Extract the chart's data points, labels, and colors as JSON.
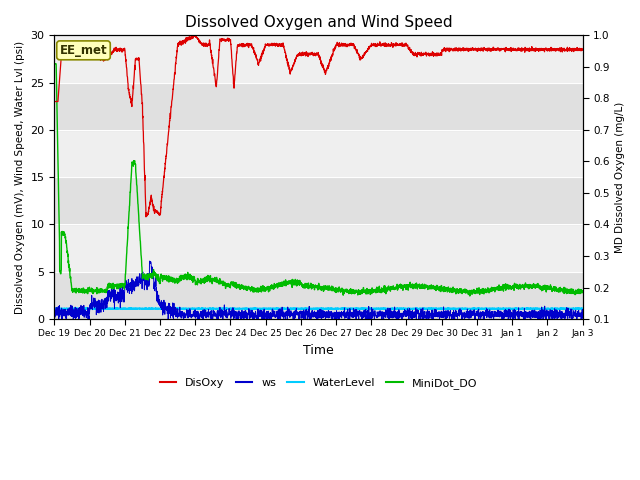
{
  "title": "Dissolved Oxygen and Wind Speed",
  "xlabel": "Time",
  "ylabel_left": "Dissolved Oxygen (mV), Wind Speed, Water Lvl (psi)",
  "ylabel_right": "MD Dissolved Oxygen (mg/L)",
  "annotation_text": "EE_met",
  "ylim_left": [
    0,
    30
  ],
  "ylim_right": [
    0.1,
    1.0
  ],
  "yticks_right": [
    0.1,
    0.2,
    0.3,
    0.4,
    0.5,
    0.6,
    0.7,
    0.8,
    0.9,
    1.0
  ],
  "yticks_left": [
    0,
    5,
    10,
    15,
    20,
    25,
    30
  ],
  "colors": {
    "DisOxy": "#DD0000",
    "ws": "#0000CC",
    "WaterLevel": "#00CCFF",
    "MiniDot_DO": "#00BB00",
    "annotation_bg": "#FFFFBB",
    "annotation_border": "#888800",
    "bg_dark": "#E0E0E0",
    "bg_light": "#EFEFEF"
  },
  "xtick_labels": [
    "Dec 19",
    "Dec 20",
    "Dec 21",
    "Dec 22",
    "Dec 23",
    "Dec 24",
    "Dec 25",
    "Dec 26",
    "Dec 27",
    "Dec 28",
    "Dec 29",
    "Dec 30",
    "Dec 31",
    "Jan 1",
    "Jan 2",
    "Jan 3"
  ],
  "n_points": 3000
}
